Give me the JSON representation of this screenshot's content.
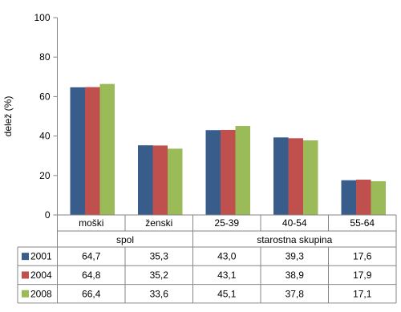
{
  "chart_data": {
    "type": "bar",
    "ylabel": "delež (%)",
    "ylim": [
      0,
      100
    ],
    "yticks": [
      0,
      20,
      40,
      60,
      80,
      100
    ],
    "grid": false,
    "legend": "table-left",
    "categories": [
      "moški",
      "ženski",
      "25-39",
      "40-54",
      "55-64"
    ],
    "groups": [
      {
        "label": "spol",
        "span": 2
      },
      {
        "label": "starostna skupina",
        "span": 3
      }
    ],
    "series": [
      {
        "name": "2001",
        "color": "#385d8a",
        "values": [
          64.7,
          35.3,
          43.0,
          39.3,
          17.6
        ]
      },
      {
        "name": "2004",
        "color": "#c0504d",
        "values": [
          64.8,
          35.2,
          43.1,
          38.9,
          17.9
        ]
      },
      {
        "name": "2008",
        "color": "#9bbb59",
        "values": [
          66.4,
          33.6,
          45.1,
          37.8,
          17.1
        ]
      }
    ],
    "table": [
      [
        "64,7",
        "35,3",
        "43,0",
        "39,3",
        "17,6"
      ],
      [
        "64,8",
        "35,2",
        "43,1",
        "38,9",
        "17,9"
      ],
      [
        "66,4",
        "33,6",
        "45,1",
        "37,8",
        "17,1"
      ]
    ]
  }
}
